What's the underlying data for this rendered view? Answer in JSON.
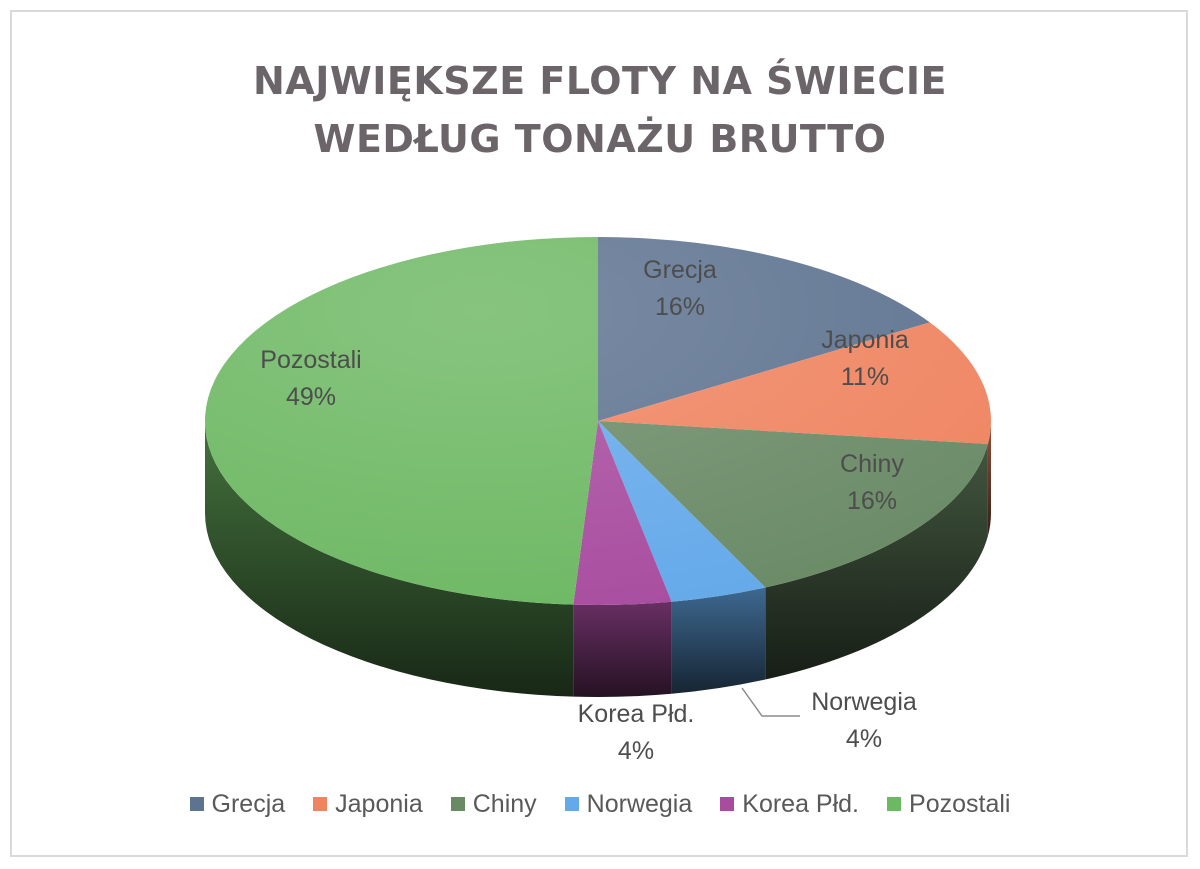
{
  "title": {
    "line1": "NAJWIĘKSZE FLOTY NA ŚWIECIE",
    "line2": "WEDŁUG TONAŻU BRUTTO"
  },
  "chart_data": {
    "type": "pie",
    "title": "NAJWIĘKSZE FLOTY NA ŚWIECIE WEDŁUG TONAŻU BRUTTO",
    "is_3d": true,
    "categories": [
      "Grecja",
      "Japonia",
      "Chiny",
      "Norwegia",
      "Korea Płd.",
      "Pozostali"
    ],
    "values": [
      16,
      11,
      16,
      4,
      4,
      49
    ],
    "data_labels": [
      "16%",
      "11%",
      "16%",
      "4%",
      "4%",
      "49%"
    ],
    "colors": [
      "#5e7390",
      "#ef8460",
      "#6a8a66",
      "#64a9ea",
      "#a84c9f",
      "#6db863"
    ],
    "legend_position": "bottom"
  }
}
